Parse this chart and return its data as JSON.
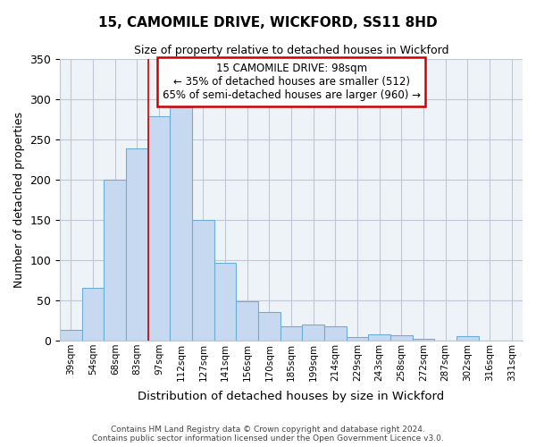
{
  "title": "15, CAMOMILE DRIVE, WICKFORD, SS11 8HD",
  "subtitle": "Size of property relative to detached houses in Wickford",
  "xlabel": "Distribution of detached houses by size in Wickford",
  "ylabel": "Number of detached properties",
  "categories": [
    "39sqm",
    "54sqm",
    "68sqm",
    "83sqm",
    "97sqm",
    "112sqm",
    "127sqm",
    "141sqm",
    "156sqm",
    "170sqm",
    "185sqm",
    "199sqm",
    "214sqm",
    "229sqm",
    "243sqm",
    "258sqm",
    "272sqm",
    "287sqm",
    "302sqm",
    "316sqm",
    "331sqm"
  ],
  "values": [
    13,
    65,
    200,
    238,
    278,
    290,
    150,
    97,
    49,
    35,
    18,
    20,
    18,
    4,
    8,
    7,
    2,
    0,
    5,
    0,
    0
  ],
  "bar_fill_color": "#c6d9f0",
  "bar_edge_color": "#6baed6",
  "ylim": [
    0,
    350
  ],
  "yticks": [
    0,
    50,
    100,
    150,
    200,
    250,
    300,
    350
  ],
  "vline_index": 4,
  "vline_color": "#cc0000",
  "annotation_title": "15 CAMOMILE DRIVE: 98sqm",
  "annotation_line1": "← 35% of detached houses are smaller (512)",
  "annotation_line2": "65% of semi-detached houses are larger (960) →",
  "annotation_box_color": "#ffffff",
  "annotation_box_edge_color": "#cc0000",
  "footer_line1": "Contains HM Land Registry data © Crown copyright and database right 2024.",
  "footer_line2": "Contains public sector information licensed under the Open Government Licence v3.0.",
  "background_color": "#ffffff",
  "plot_bg_color": "#eef3f8",
  "grid_color": "#c0c8d8"
}
